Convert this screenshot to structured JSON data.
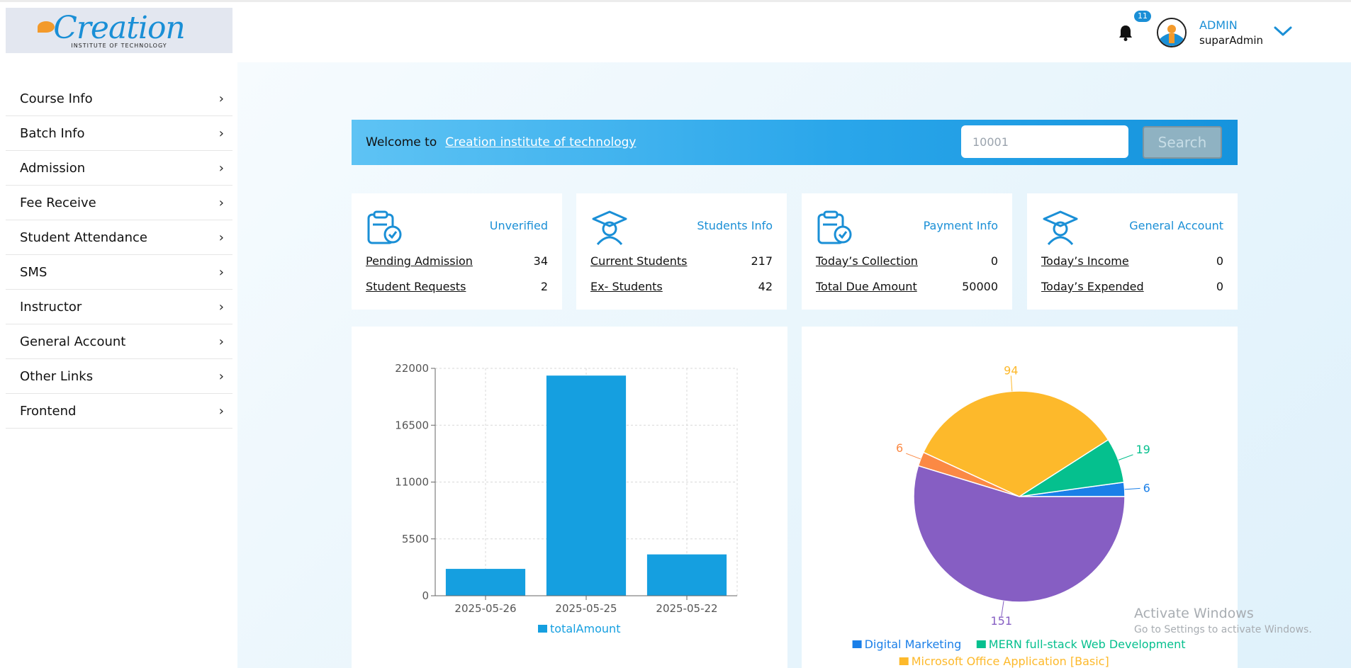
{
  "logo": {
    "word": "Creation",
    "tagline": "INSTITUTE OF TECHNOLOGY"
  },
  "sidebar": {
    "items": [
      {
        "label": "Course Info"
      },
      {
        "label": "Batch Info"
      },
      {
        "label": "Admission"
      },
      {
        "label": "Fee Receive"
      },
      {
        "label": "Student Attendance"
      },
      {
        "label": "SMS"
      },
      {
        "label": "Instructor"
      },
      {
        "label": "General Account"
      },
      {
        "label": "Other Links"
      },
      {
        "label": "Frontend"
      }
    ]
  },
  "header": {
    "notification_count": "11",
    "user_role": "ADMIN",
    "user_name": "suparAdmin"
  },
  "welcome": {
    "text": "Welcome to",
    "link": "Creation institute of technology",
    "search_placeholder": "10001",
    "search_label": "Search"
  },
  "cards": [
    {
      "title": "Unverified",
      "rows": [
        {
          "label": "Pending Admission",
          "value": "34"
        },
        {
          "label": "Student Requests",
          "value": "2"
        }
      ]
    },
    {
      "title": "Students Info",
      "rows": [
        {
          "label": "Current Students",
          "value": "217"
        },
        {
          "label": "Ex- Students",
          "value": "42"
        }
      ]
    },
    {
      "title": "Payment Info",
      "rows": [
        {
          "label": "Today’s Collection",
          "value": "0"
        },
        {
          "label": "Total Due Amount",
          "value": "50000"
        }
      ]
    },
    {
      "title": "General Account",
      "rows": [
        {
          "label": "Today’s Income",
          "value": "0"
        },
        {
          "label": "Today’s Expended",
          "value": "0"
        }
      ]
    }
  ],
  "chart_data": [
    {
      "type": "bar",
      "categories": [
        "2025-05-26",
        "2025-05-25",
        "2025-05-22"
      ],
      "series": [
        {
          "name": "totalAmount",
          "values": [
            2600,
            21300,
            4000
          ],
          "color": "#159fe0"
        }
      ],
      "yticks": [
        0,
        5500,
        11000,
        16500,
        22000
      ],
      "ylim": [
        0,
        22000
      ],
      "grid": true,
      "legend_position": "bottom"
    },
    {
      "type": "pie",
      "slices": [
        {
          "name": "Digital Marketing",
          "value": 6,
          "color": "#1a7fe8"
        },
        {
          "name": "MERN full-stack Web Development",
          "value": 19,
          "color": "#05c08e"
        },
        {
          "name": "Microsoft Office Application [Basic]",
          "value": 94,
          "color": "#fdb92b"
        },
        {
          "name": "",
          "value": 6,
          "color": "#fb8944"
        },
        {
          "name": "",
          "value": 151,
          "color": "#865ec3"
        }
      ],
      "legend_position": "bottom"
    }
  ],
  "watermark": {
    "line1": "Activate Windows",
    "line2": "Go to Settings to activate Windows."
  }
}
